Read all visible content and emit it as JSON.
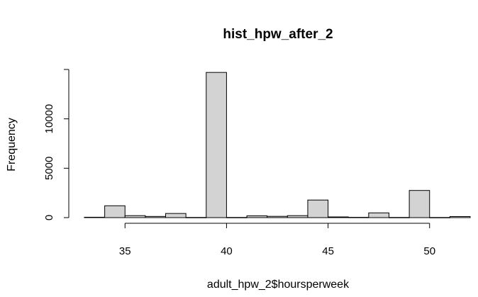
{
  "chart_data": {
    "type": "bar",
    "title": "hist_hpw_after_2",
    "xlabel": "adult_hpw_2$hoursperweek",
    "ylabel": "Frequency",
    "bin_width": 1,
    "bins": [
      {
        "start": 33,
        "end": 34,
        "count": 40
      },
      {
        "start": 34,
        "end": 35,
        "count": 1200
      },
      {
        "start": 35,
        "end": 36,
        "count": 200
      },
      {
        "start": 36,
        "end": 37,
        "count": 120
      },
      {
        "start": 37,
        "end": 38,
        "count": 420
      },
      {
        "start": 38,
        "end": 39,
        "count": 20
      },
      {
        "start": 39,
        "end": 40,
        "count": 14700
      },
      {
        "start": 40,
        "end": 41,
        "count": 20
      },
      {
        "start": 41,
        "end": 42,
        "count": 180
      },
      {
        "start": 42,
        "end": 43,
        "count": 130
      },
      {
        "start": 43,
        "end": 44,
        "count": 200
      },
      {
        "start": 44,
        "end": 45,
        "count": 1780
      },
      {
        "start": 45,
        "end": 46,
        "count": 70
      },
      {
        "start": 46,
        "end": 47,
        "count": 30
      },
      {
        "start": 47,
        "end": 48,
        "count": 480
      },
      {
        "start": 48,
        "end": 49,
        "count": 20
      },
      {
        "start": 49,
        "end": 50,
        "count": 2750
      },
      {
        "start": 50,
        "end": 51,
        "count": 15
      },
      {
        "start": 51,
        "end": 52,
        "count": 110
      }
    ],
    "xlim": [
      33,
      52
    ],
    "ylim": [
      0,
      15000
    ],
    "x_ticks": [
      35,
      40,
      45,
      50
    ],
    "x_axis_range": [
      35,
      50
    ],
    "y_ticks": [
      0,
      5000,
      10000
    ],
    "y_axis_range": [
      0,
      15000
    ],
    "grid": false,
    "legend": "none",
    "bar_color": "#d3d3d3",
    "border_color": "#000000"
  }
}
